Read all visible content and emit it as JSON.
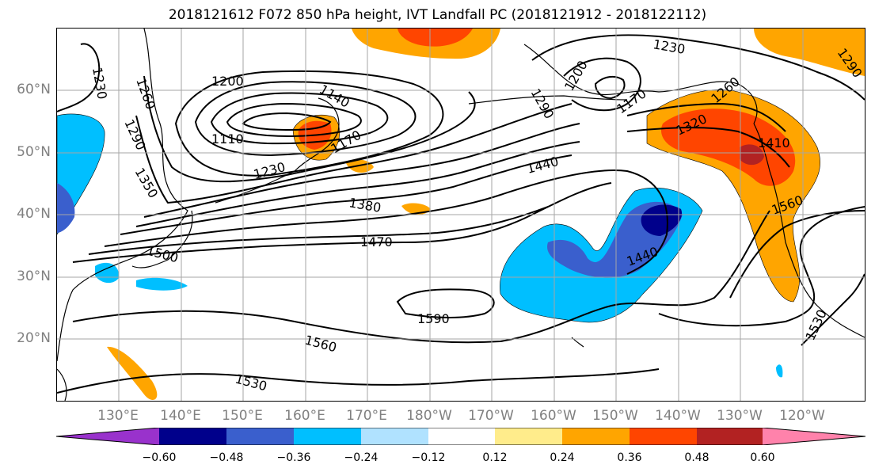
{
  "title": "2018121612 F072 850 hPa height, IVT Landfall PC (2018121912 - 2018122112)",
  "lat_labels": [
    {
      "text": "60°N",
      "lat": 60
    },
    {
      "text": "50°N",
      "lat": 50
    },
    {
      "text": "40°N",
      "lat": 40
    },
    {
      "text": "30°N",
      "lat": 30
    },
    {
      "text": "20°N",
      "lat": 20
    }
  ],
  "lon_labels": [
    {
      "text": "130°E",
      "lon": 130
    },
    {
      "text": "140°E",
      "lon": 140
    },
    {
      "text": "150°E",
      "lon": 150
    },
    {
      "text": "160°E",
      "lon": 160
    },
    {
      "text": "170°E",
      "lon": 170
    },
    {
      "text": "180°W",
      "lon": 180
    },
    {
      "text": "170°W",
      "lon": 190
    },
    {
      "text": "160°W",
      "lon": 200
    },
    {
      "text": "150°W",
      "lon": 210
    },
    {
      "text": "140°W",
      "lon": 220
    },
    {
      "text": "130°W",
      "lon": 230
    },
    {
      "text": "120°W",
      "lon": 240
    }
  ],
  "contour_labels": [
    {
      "text": "1230"
    },
    {
      "text": "1260"
    },
    {
      "text": "1290"
    },
    {
      "text": "1200"
    },
    {
      "text": "1140"
    },
    {
      "text": "1110"
    },
    {
      "text": "1170"
    },
    {
      "text": "1230"
    },
    {
      "text": "1380"
    },
    {
      "text": "1470"
    },
    {
      "text": "1500"
    },
    {
      "text": "1590"
    },
    {
      "text": "1560"
    },
    {
      "text": "1530"
    },
    {
      "text": "1440"
    },
    {
      "text": "1230"
    },
    {
      "text": "1200"
    },
    {
      "text": "1290"
    },
    {
      "text": "1170"
    },
    {
      "text": "1260"
    },
    {
      "text": "1320"
    },
    {
      "text": "1410"
    },
    {
      "text": "1560"
    },
    {
      "text": "1440"
    },
    {
      "text": "1530"
    },
    {
      "text": "1290"
    },
    {
      "text": "1350"
    }
  ],
  "colorbar": {
    "colors": [
      "#9932cc",
      "#00008b",
      "#3a5fcd",
      "#00bfff",
      "#b0e2ff",
      "#ffffff",
      "#ffec8b",
      "#ffa500",
      "#ff4500",
      "#b22222",
      "#ff82ab"
    ],
    "ticks": [
      "−0.60",
      "−0.48",
      "−0.36",
      "−0.24",
      "−0.12",
      "0.12",
      "0.24",
      "0.36",
      "0.48",
      "0.60"
    ]
  },
  "palette": {
    "dark_blue": "#00008b",
    "med_blue": "#3a5fcd",
    "deep_sky": "#00bfff",
    "light_blue": "#b0e2ff",
    "yellow": "#ffec8b",
    "orange": "#ffa500",
    "red_orange": "#ff4500",
    "firebrick": "#b22222",
    "pink": "#ff82ab"
  }
}
